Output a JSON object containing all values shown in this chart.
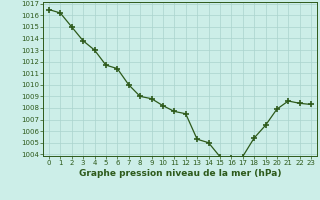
{
  "x": [
    0,
    1,
    2,
    3,
    4,
    5,
    6,
    7,
    8,
    9,
    10,
    11,
    12,
    13,
    14,
    15,
    16,
    17,
    18,
    19,
    20,
    21,
    22,
    23
  ],
  "y": [
    1016.5,
    1016.2,
    1015.0,
    1013.8,
    1013.0,
    1011.7,
    1011.4,
    1010.0,
    1009.0,
    1008.8,
    1008.2,
    1007.7,
    1007.5,
    1005.3,
    1005.0,
    1003.8,
    1003.7,
    1003.8,
    1005.4,
    1006.5,
    1007.9,
    1008.6,
    1008.4,
    1008.3
  ],
  "ylim_min": 1004,
  "ylim_max": 1017,
  "yticks": [
    1004,
    1005,
    1006,
    1007,
    1008,
    1009,
    1010,
    1011,
    1012,
    1013,
    1014,
    1015,
    1016,
    1017
  ],
  "xticks": [
    0,
    1,
    2,
    3,
    4,
    5,
    6,
    7,
    8,
    9,
    10,
    11,
    12,
    13,
    14,
    15,
    16,
    17,
    18,
    19,
    20,
    21,
    22,
    23
  ],
  "xlabel": "Graphe pression niveau de la mer (hPa)",
  "line_color": "#2d5a1b",
  "marker": "+",
  "marker_size": 5,
  "marker_linewidth": 1.2,
  "bg_color": "#cceee8",
  "grid_color": "#aad4ce",
  "tick_label_fontsize": 5.0,
  "xlabel_fontsize": 6.5,
  "linewidth": 0.9
}
